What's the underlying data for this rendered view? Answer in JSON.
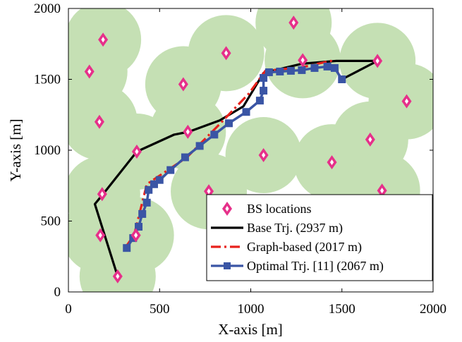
{
  "chart_data": {
    "type": "scatter",
    "title": "",
    "xlabel": "X-axis [m]",
    "ylabel": "Y-axis [m]",
    "xlim": [
      0,
      2000
    ],
    "ylim": [
      0,
      2000
    ],
    "xticks": [
      "0",
      "500",
      "1000",
      "1500",
      "2000"
    ],
    "yticks": [
      "0",
      "500",
      "1000",
      "1500",
      "2000"
    ],
    "grid": false,
    "legend_position": "bottom-right",
    "coverage_color": "#c5e0b4",
    "series": [
      {
        "name": "BS locations",
        "kind": "markers",
        "marker": "diamond",
        "color": "#e6308a",
        "x": [
          115,
          190,
          170,
          375,
          630,
          865,
          1235,
          1285,
          1695,
          1855,
          185,
          370,
          655,
          770,
          1070,
          1445,
          1655,
          1720,
          175,
          270
        ],
        "y": [
          1555,
          1780,
          1200,
          990,
          1465,
          1685,
          1900,
          1635,
          1630,
          1345,
          690,
          400,
          1130,
          710,
          965,
          915,
          1075,
          715,
          400,
          110
        ]
      },
      {
        "name": "Base Trj. (2937 m)",
        "kind": "line",
        "color": "#000000",
        "x": [
          270,
          145,
          190,
          375,
          580,
          660,
          830,
          960,
          1070,
          1280,
          1470,
          1695,
          1500
        ],
        "y": [
          110,
          620,
          690,
          990,
          1110,
          1130,
          1210,
          1310,
          1545,
          1610,
          1630,
          1630,
          1500
        ],
        "legend": false
      },
      {
        "name": "Graph-based (2017 m)",
        "kind": "line",
        "color": "#e8211c",
        "x": [
          310,
          360,
          430,
          650,
          830,
          990,
          1080,
          1280,
          1440,
          1500
        ],
        "y": [
          310,
          400,
          760,
          950,
          1185,
          1400,
          1560,
          1585,
          1630,
          1500
        ],
        "legend": false
      },
      {
        "name": "Optimal Trj. [11] (2067 m)",
        "kind": "line-markers",
        "marker": "square",
        "color": "#3a55a5",
        "x": [
          320,
          355,
          385,
          405,
          430,
          440,
          470,
          500,
          560,
          640,
          720,
          800,
          880,
          975,
          1050,
          1070,
          1070,
          1100,
          1160,
          1220,
          1280,
          1350,
          1420,
          1460,
          1500
        ],
        "y": [
          310,
          380,
          460,
          550,
          630,
          720,
          760,
          790,
          860,
          950,
          1030,
          1110,
          1190,
          1270,
          1350,
          1420,
          1510,
          1550,
          1555,
          1560,
          1565,
          1580,
          1590,
          1580,
          1500
        ]
      }
    ],
    "legend": [
      {
        "label": "BS locations",
        "symbol": "diamond",
        "color": "#e6308a"
      },
      {
        "label": "Base Trj. (2937 m)",
        "symbol": "solid",
        "color": "#000000"
      },
      {
        "label": "Graph-based (2017 m)",
        "symbol": "dashdot",
        "color": "#e8211c"
      },
      {
        "label": "Optimal Trj. [11] (2067 m)",
        "symbol": "square-line",
        "color": "#3a55a5"
      }
    ]
  }
}
